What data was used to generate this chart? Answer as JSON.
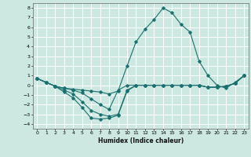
{
  "xlabel": "Humidex (Indice chaleur)",
  "xlim": [
    -0.5,
    23.5
  ],
  "ylim": [
    -4.5,
    8.5
  ],
  "xticks": [
    0,
    1,
    2,
    3,
    4,
    5,
    6,
    7,
    8,
    9,
    10,
    11,
    12,
    13,
    14,
    15,
    16,
    17,
    18,
    19,
    20,
    21,
    22,
    23
  ],
  "yticks": [
    -4,
    -3,
    -2,
    -1,
    0,
    1,
    2,
    3,
    4,
    5,
    6,
    7,
    8
  ],
  "bg_color": "#cce8e0",
  "grid_color": "#ffffff",
  "line_color": "#1a7070",
  "lines": [
    {
      "x": [
        0,
        1,
        2,
        3,
        4,
        5,
        6,
        7,
        8,
        9,
        10,
        11,
        12,
        13,
        14,
        15,
        16,
        17,
        18,
        19,
        20,
        21,
        22,
        23
      ],
      "y": [
        0.7,
        0.3,
        -0.1,
        -0.7,
        -1.3,
        -2.3,
        -3.4,
        -3.5,
        -3.4,
        -3.1,
        -0.6,
        0.0,
        0.0,
        0.0,
        0.0,
        0.0,
        0.0,
        0.0,
        0.0,
        -0.2,
        -0.2,
        -0.1,
        0.2,
        1.0
      ]
    },
    {
      "x": [
        0,
        1,
        2,
        3,
        4,
        5,
        6,
        7,
        8,
        9,
        10,
        11,
        12,
        13,
        14,
        15,
        16,
        17,
        18,
        19,
        20,
        21,
        22,
        23
      ],
      "y": [
        0.7,
        0.3,
        -0.1,
        -0.5,
        -0.9,
        -1.7,
        -2.6,
        -3.0,
        -3.2,
        -3.0,
        -0.5,
        0.0,
        0.0,
        0.0,
        0.0,
        0.0,
        0.0,
        0.0,
        0.0,
        -0.2,
        -0.2,
        -0.1,
        0.2,
        1.0
      ]
    },
    {
      "x": [
        0,
        1,
        2,
        3,
        4,
        5,
        6,
        7,
        8,
        9,
        10,
        11,
        12,
        13,
        14,
        15,
        16,
        17,
        18,
        19,
        20,
        21,
        22,
        23
      ],
      "y": [
        0.7,
        0.3,
        -0.1,
        -0.3,
        -0.5,
        -0.8,
        -1.4,
        -2.0,
        -2.5,
        -0.5,
        0.0,
        0.0,
        0.0,
        0.0,
        0.0,
        0.0,
        0.0,
        0.0,
        0.0,
        -0.2,
        -0.2,
        -0.1,
        0.2,
        1.0
      ]
    },
    {
      "x": [
        0,
        1,
        2,
        3,
        4,
        5,
        6,
        7,
        8,
        9,
        10,
        11,
        12,
        13,
        14,
        15,
        16,
        17,
        18,
        19,
        20,
        21,
        22,
        23
      ],
      "y": [
        0.7,
        0.3,
        -0.1,
        -0.3,
        -0.4,
        -0.5,
        -0.6,
        -0.7,
        -0.9,
        -0.6,
        2.0,
        4.5,
        5.8,
        6.8,
        8.0,
        7.5,
        6.3,
        5.5,
        2.5,
        1.0,
        0.0,
        -0.3,
        0.3,
        1.0
      ]
    }
  ]
}
